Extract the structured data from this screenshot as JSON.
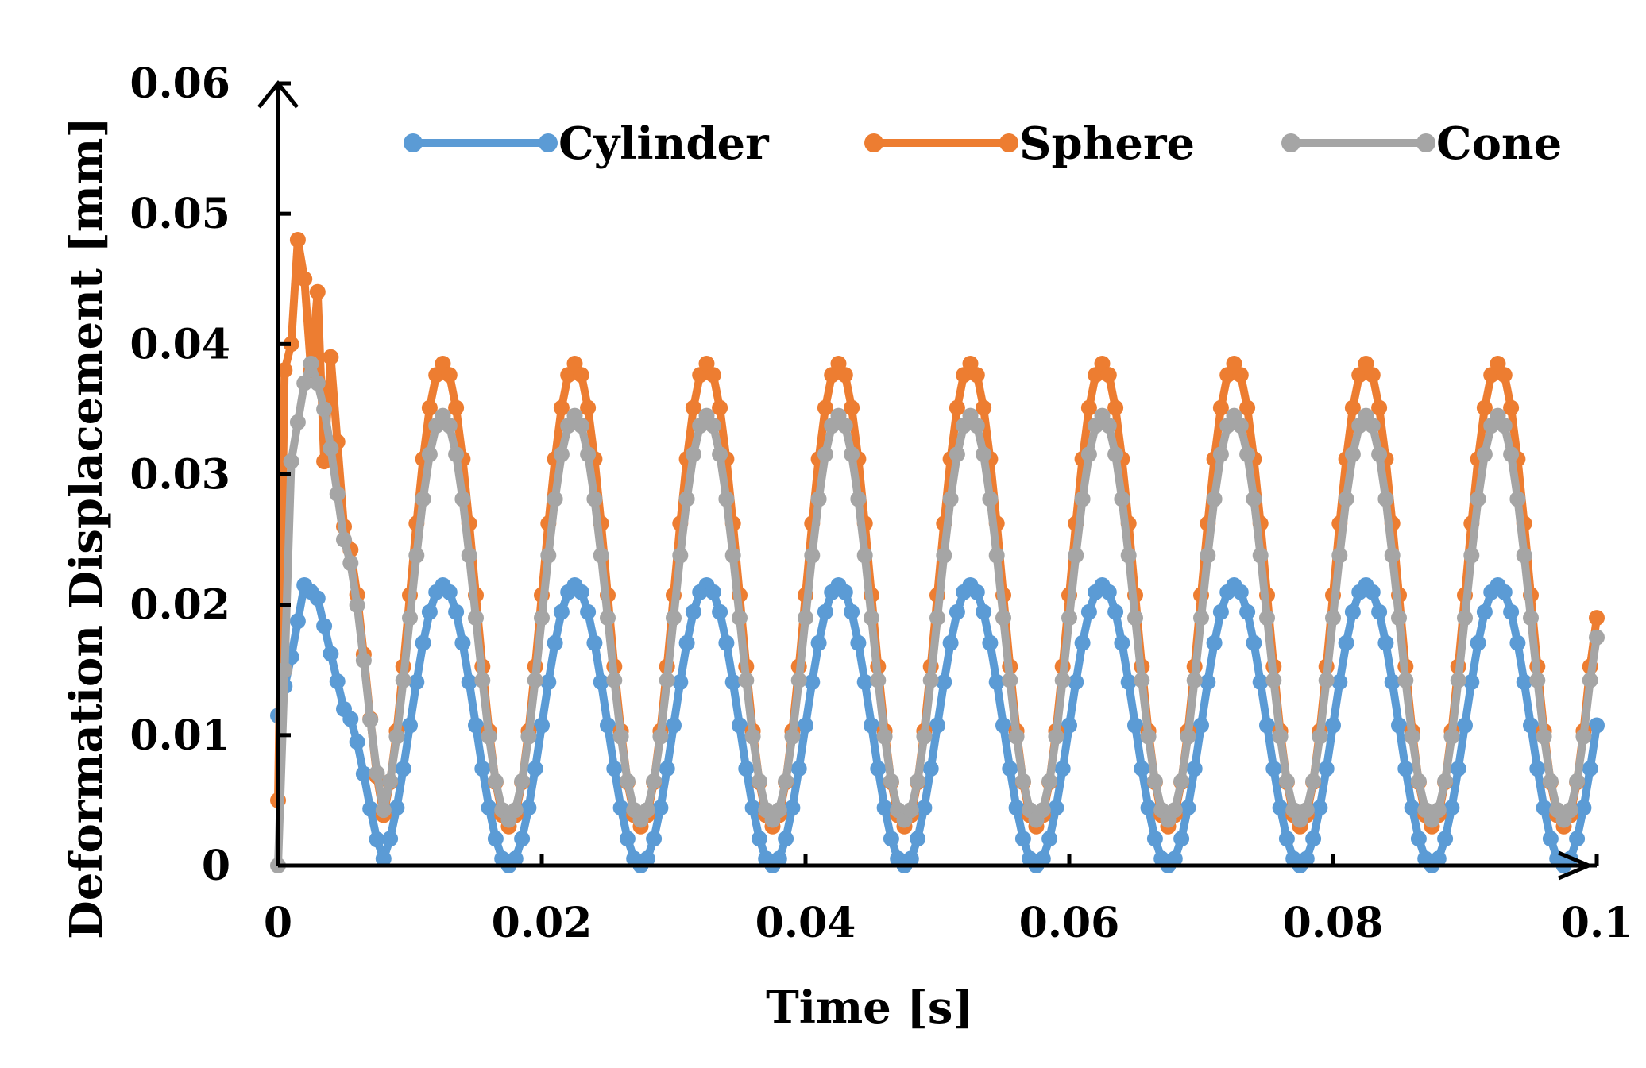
{
  "chart_data": {
    "type": "scatter",
    "title": "",
    "xlabel": "Time [s]",
    "ylabel": "Deformation Displacement [mm]",
    "xlim": [
      0,
      0.1
    ],
    "ylim": [
      0,
      0.06
    ],
    "x_ticks": [
      "0",
      "0.02",
      "0.04",
      "0.06",
      "0.08",
      "0.1"
    ],
    "y_ticks": [
      "0",
      "0.01",
      "0.02",
      "0.03",
      "0.04",
      "0.05",
      "0.06"
    ],
    "x_tick_values": [
      0,
      0.02,
      0.04,
      0.06,
      0.08,
      0.1
    ],
    "y_tick_values": [
      0,
      0.01,
      0.02,
      0.03,
      0.04,
      0.05,
      0.06
    ],
    "grid": false,
    "legend_position": "top",
    "sample_step": 0.0005,
    "series": [
      {
        "name": "Cylinder",
        "color": "#5B9BD5",
        "shape": "sinusoid",
        "period": 0.01,
        "peak_time": 0.0125,
        "min": 0.0,
        "max": 0.0215,
        "initial": [
          [
            0,
            0.0115
          ],
          [
            0.001,
            0.016
          ],
          [
            0.002,
            0.0215
          ],
          [
            0.003,
            0.0205
          ],
          [
            0.005,
            0.012
          ]
        ]
      },
      {
        "name": "Sphere",
        "color": "#ED7D31",
        "shape": "sinusoid",
        "period": 0.01,
        "peak_time": 0.0125,
        "min": 0.003,
        "max": 0.0385,
        "end_point": [
          0.1,
          0.019
        ],
        "initial": [
          [
            0,
            0.005
          ],
          [
            0.0005,
            0.038
          ],
          [
            0.001,
            0.04
          ],
          [
            0.0015,
            0.048
          ],
          [
            0.002,
            0.045
          ],
          [
            0.0025,
            0.038
          ],
          [
            0.003,
            0.044
          ],
          [
            0.0035,
            0.031
          ],
          [
            0.004,
            0.039
          ],
          [
            0.005,
            0.026
          ]
        ]
      },
      {
        "name": "Cone",
        "color": "#A5A5A5",
        "shape": "sinusoid",
        "period": 0.01,
        "peak_time": 0.0125,
        "min": 0.0035,
        "max": 0.0345,
        "end_point": [
          0.1,
          0.0175
        ],
        "initial": [
          [
            0,
            0.0
          ],
          [
            0.0003,
            0.004
          ],
          [
            0.0007,
            0.026
          ],
          [
            0.001,
            0.031
          ],
          [
            0.0015,
            0.034
          ],
          [
            0.002,
            0.037
          ],
          [
            0.0025,
            0.0385
          ],
          [
            0.003,
            0.037
          ],
          [
            0.0035,
            0.035
          ],
          [
            0.004,
            0.032
          ],
          [
            0.005,
            0.025
          ]
        ]
      }
    ]
  }
}
